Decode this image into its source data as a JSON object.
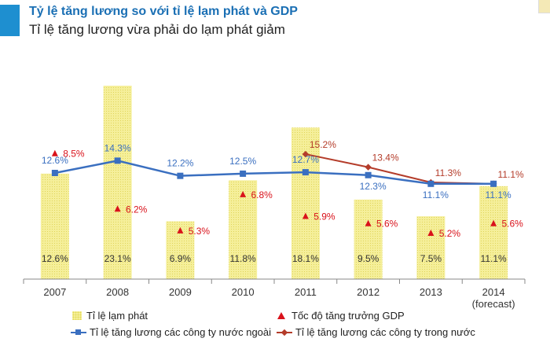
{
  "header": {
    "title": "Tỷ lệ tăng lương so với tỉ lệ lạm phát và GDP",
    "subtitle": "Tỉ lệ tăng lương vừa phải do lạm phát giảm"
  },
  "colors": {
    "accent": "#1e8fd0",
    "title": "#1a6fb4",
    "bar_fill": "#f5ef9a",
    "gdp_marker": "#d9121b",
    "foreign_line": "#3a6fc0",
    "domestic_line": "#b43c2a"
  },
  "chart_data": {
    "type": "bar",
    "title": "",
    "categories": [
      "2007",
      "2008",
      "2009",
      "2010",
      "2011",
      "2012",
      "2013",
      "2014"
    ],
    "category_sublabels": [
      "",
      "",
      "",
      "",
      "",
      "",
      "",
      "(forecast)"
    ],
    "ylim": [
      0,
      25
    ],
    "grid": false,
    "legend_position": "bottom",
    "series": [
      {
        "name": "Tỉ lệ lạm phát",
        "kind": "bar",
        "values": [
          12.6,
          23.1,
          6.9,
          11.8,
          18.1,
          9.5,
          7.5,
          11.1
        ],
        "labels": [
          "12.6%",
          "23.1%",
          "6.9%",
          "11.8%",
          "18.1%",
          "9.5%",
          "7.5%",
          "11.1%"
        ]
      },
      {
        "name": "Tốc độ tăng trưởng GDP",
        "kind": "marker",
        "values": [
          8.5,
          6.2,
          5.3,
          6.8,
          5.9,
          5.6,
          5.2,
          5.6
        ],
        "labels": [
          "8.5%",
          "6.2%",
          "5.3%",
          "6.8%",
          "5.9%",
          "5.6%",
          "5.2%",
          "5.6%"
        ]
      },
      {
        "name": "Tỉ lệ tăng lương các công ty nước ngoài",
        "kind": "line",
        "values": [
          12.6,
          14.3,
          12.2,
          12.5,
          12.7,
          12.3,
          11.1,
          11.1
        ],
        "labels": [
          "12.6%",
          "14.3%",
          "12.2%",
          "12.5%",
          "12.7%",
          "12.3%",
          "11.1%",
          "11.1%"
        ]
      },
      {
        "name": "Tỉ lệ tăng lương các công ty trong nước",
        "kind": "line",
        "values": [
          null,
          null,
          null,
          null,
          15.2,
          13.4,
          11.3,
          11.1
        ],
        "labels": [
          "",
          "",
          "",
          "",
          "15.2%",
          "13.4%",
          "11.3%",
          "11.1%"
        ]
      }
    ]
  }
}
